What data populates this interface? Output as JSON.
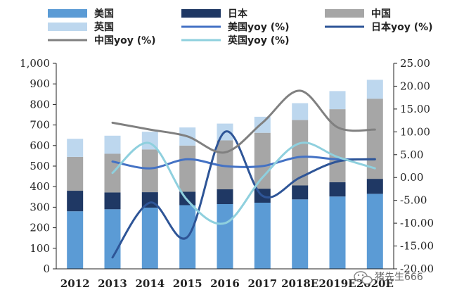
{
  "chart_data": {
    "type": "bar",
    "stacked": true,
    "categories": [
      "2012",
      "2013",
      "2014",
      "2015",
      "2016",
      "2017",
      "2018E",
      "2019E",
      "2020E"
    ],
    "series": [
      {
        "name": "美国",
        "kind": "bar",
        "color": "#5b9bd5",
        "values": [
          280,
          290,
          298,
          310,
          315,
          322,
          338,
          352,
          365
        ]
      },
      {
        "name": "日本",
        "kind": "bar",
        "color": "#1f3864",
        "values": [
          100,
          82,
          75,
          65,
          72,
          68,
          68,
          70,
          73
        ]
      },
      {
        "name": "中国",
        "kind": "bar",
        "color": "#a6a6a6",
        "values": [
          165,
          188,
          208,
          225,
          238,
          272,
          318,
          355,
          390
        ]
      },
      {
        "name": "英国",
        "kind": "bar",
        "color": "#bdd7ee",
        "values": [
          88,
          88,
          86,
          88,
          82,
          78,
          82,
          88,
          92
        ]
      },
      {
        "name": "美国yoy (%)",
        "kind": "line",
        "axis": "right",
        "color": "#4472c4",
        "values": [
          null,
          3.5,
          2.0,
          4.0,
          2.5,
          2.5,
          4.5,
          4.0,
          4.0
        ]
      },
      {
        "name": "日本yoy (%)",
        "kind": "line",
        "axis": "right",
        "color": "#2e5597",
        "values": [
          null,
          -17.5,
          -5.5,
          -13.0,
          10.0,
          -4.0,
          0.0,
          3.5,
          4.0
        ]
      },
      {
        "name": "中国yoy (%)",
        "kind": "line",
        "axis": "right",
        "color": "#808080",
        "values": [
          null,
          12.0,
          10.5,
          9.0,
          5.5,
          12.0,
          19.0,
          11.0,
          10.5
        ]
      },
      {
        "name": "英国yoy (%)",
        "kind": "line",
        "axis": "right",
        "color": "#8fd0de",
        "values": [
          null,
          1.0,
          7.5,
          -5.0,
          -10.0,
          0.0,
          7.5,
          4.5,
          2.0
        ]
      }
    ],
    "y_left": {
      "ylim": [
        0,
        1000
      ],
      "ticks": [
        "0",
        "100",
        "200",
        "300",
        "400",
        "500",
        "600",
        "700",
        "800",
        "900",
        "1,000"
      ]
    },
    "y_right": {
      "ylim": [
        -20,
        25
      ],
      "ticks": [
        "-20.00",
        "-15.00",
        "-10.00",
        "-5.00",
        "0.00",
        "5.00",
        "10.00",
        "15.00",
        "20.00",
        "25.00"
      ]
    },
    "legend_position": "top",
    "title": "",
    "xlabel": "",
    "ylabel": ""
  },
  "watermark": {
    "text": "猪先生666",
    "icon": "wechat-icon"
  }
}
